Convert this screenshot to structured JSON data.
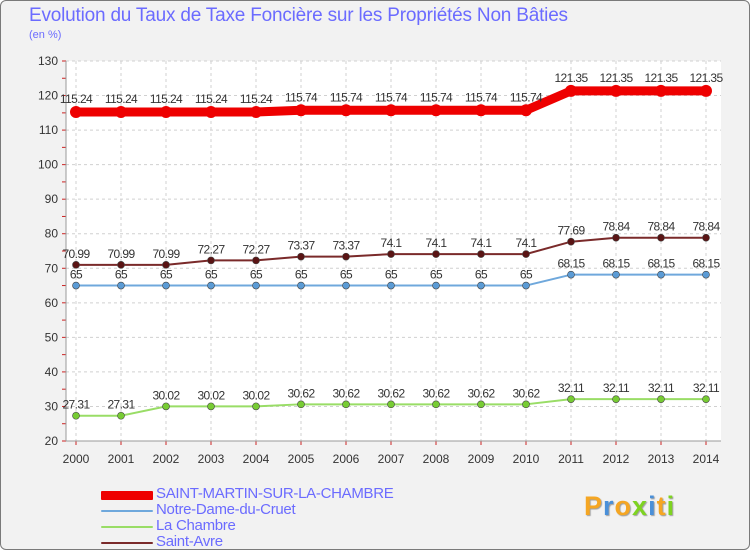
{
  "chart_data": {
    "type": "line",
    "title": "Evolution du Taux de Taxe Foncière sur les Propriétés Non Bâties",
    "ylabel": "(en %)",
    "xlabel": "",
    "ylim": [
      20,
      130
    ],
    "y_ticks": [
      "20",
      "30",
      "40",
      "50",
      "60",
      "70",
      "80",
      "90",
      "100",
      "110",
      "120",
      "130"
    ],
    "grid": true,
    "categories": [
      "2000",
      "2001",
      "2002",
      "2003",
      "2004",
      "2005",
      "2006",
      "2007",
      "2008",
      "2009",
      "2010",
      "2011",
      "2012",
      "2013",
      "2014"
    ],
    "series": [
      {
        "name": "SAINT-MARTIN-SUR-LA-CHAMBRE",
        "color": "#ee0000",
        "marker": "#ee0000",
        "style": "thick",
        "values": [
          115.24,
          115.24,
          115.24,
          115.24,
          115.24,
          115.74,
          115.74,
          115.74,
          115.74,
          115.74,
          115.74,
          121.35,
          121.35,
          121.35,
          121.35
        ],
        "labels": [
          "115.24",
          "115.24",
          "115.24",
          "115.24",
          "115.24",
          "115.74",
          "115.74",
          "115.74",
          "115.74",
          "115.74",
          "115.74",
          "121.35",
          "121.35",
          "121.35",
          "121.35"
        ]
      },
      {
        "name": "Notre-Dame-du-Cruet",
        "color": "#6fa8dc",
        "marker": "#5b9bd5",
        "style": "thin",
        "values": [
          65,
          65,
          65,
          65,
          65,
          65,
          65,
          65,
          65,
          65,
          65,
          68.15,
          68.15,
          68.15,
          68.15
        ],
        "labels": [
          "65",
          "65",
          "65",
          "65",
          "65",
          "65",
          "65",
          "65",
          "65",
          "65",
          "65",
          "68.15",
          "68.15",
          "68.15",
          "68.15"
        ]
      },
      {
        "name": "La Chambre",
        "color": "#99dd66",
        "marker": "#77cc33",
        "style": "thin",
        "values": [
          27.31,
          27.31,
          30.02,
          30.02,
          30.02,
          30.62,
          30.62,
          30.62,
          30.62,
          30.62,
          30.62,
          32.11,
          32.11,
          32.11,
          32.11
        ],
        "labels": [
          "27.31",
          "27.31",
          "30.02",
          "30.02",
          "30.02",
          "30.62",
          "30.62",
          "30.62",
          "30.62",
          "30.62",
          "30.62",
          "32.11",
          "32.11",
          "32.11",
          "32.11"
        ]
      },
      {
        "name": "Saint-Avre",
        "color": "#7a2a2a",
        "marker": "#5a1414",
        "style": "thin",
        "values": [
          70.99,
          70.99,
          70.99,
          72.27,
          72.27,
          73.37,
          73.37,
          74.1,
          74.1,
          74.1,
          74.1,
          77.69,
          78.84,
          78.84,
          78.84
        ],
        "labels": [
          "70.99",
          "70.99",
          "70.99",
          "72.27",
          "72.27",
          "73.37",
          "73.37",
          "74.1",
          "74.1",
          "74.1",
          "74.1",
          "77.69",
          "78.84",
          "78.84",
          "78.84"
        ]
      }
    ]
  },
  "branding": {
    "letters": [
      "P",
      "r",
      "o",
      "x",
      "i",
      "t",
      "i"
    ],
    "colors": [
      "#f5a623",
      "#4a90d9",
      "#f5a623",
      "#7ed321",
      "#4a90d9",
      "#f5a623",
      "#7ed321"
    ]
  }
}
